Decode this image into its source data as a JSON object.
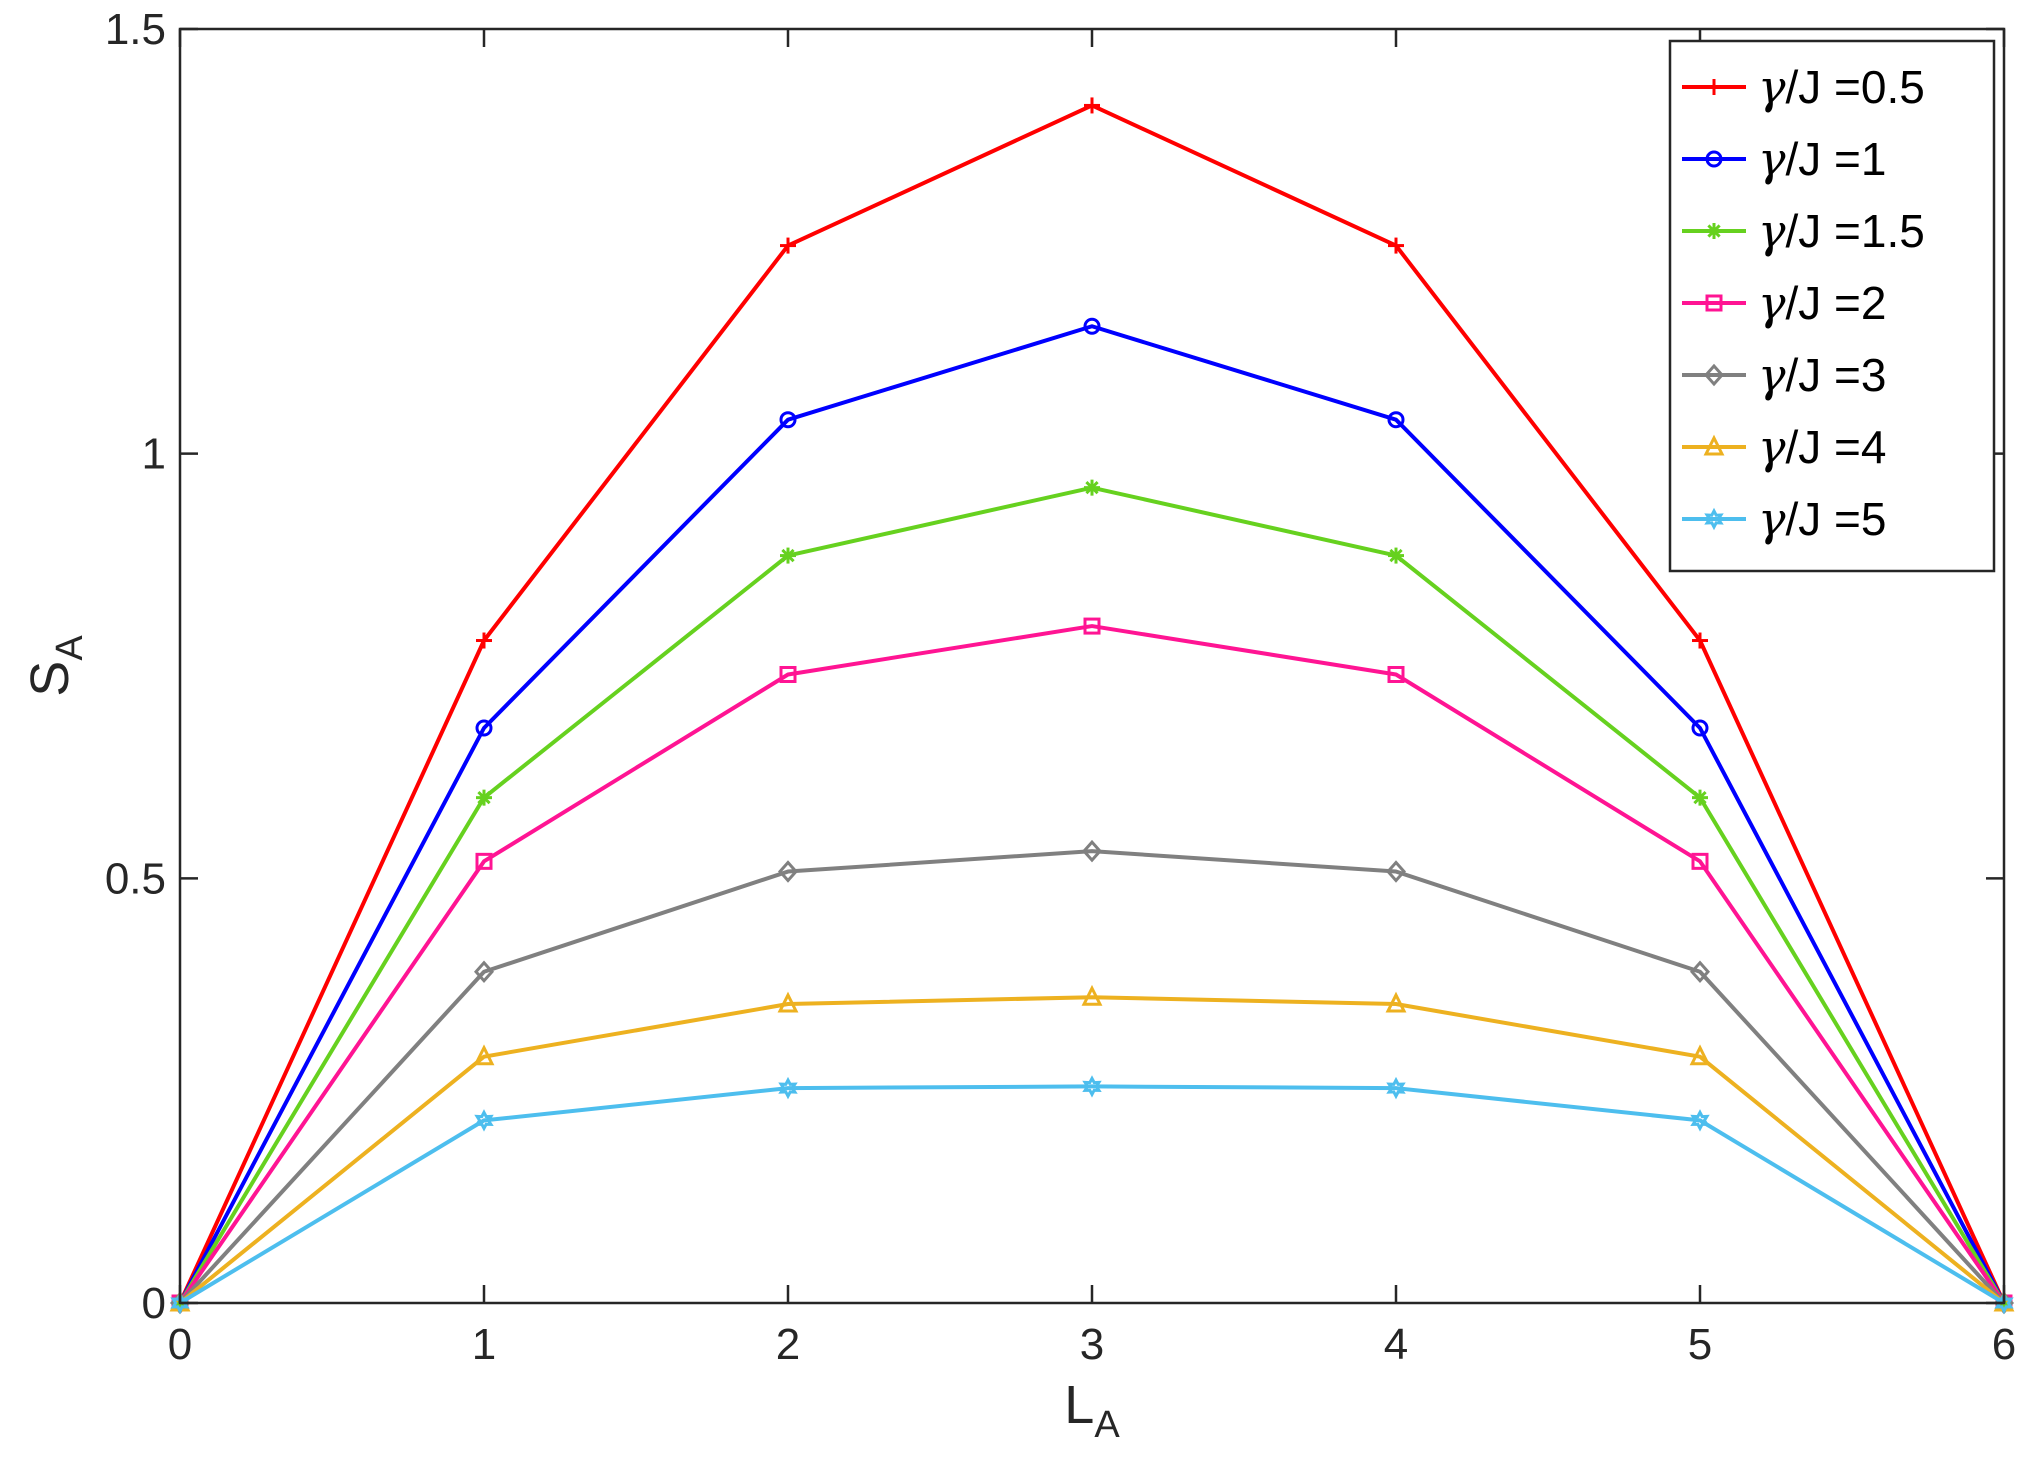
{
  "chart_data": {
    "type": "line",
    "title": "",
    "xlabel": {
      "main": "L",
      "sub": "A"
    },
    "ylabel": {
      "main": "S",
      "sub": "A"
    },
    "xlim": [
      0,
      6
    ],
    "ylim": [
      0,
      1.5
    ],
    "xticks": [
      0,
      1,
      2,
      3,
      4,
      5,
      6
    ],
    "xtick_labels": [
      "0",
      "1",
      "2",
      "3",
      "4",
      "5",
      "6"
    ],
    "yticks": [
      0,
      0.5,
      1,
      1.5
    ],
    "ytick_labels": [
      "0",
      "0.5",
      "1",
      "1.5"
    ],
    "grid": false,
    "legend_position": "top-right",
    "legend_symbol": "γ",
    "x": [
      0,
      1,
      2,
      3,
      4,
      5,
      6
    ],
    "series": [
      {
        "name": "/J =0.5",
        "color": "#ff0000",
        "marker": "plus",
        "values": [
          0,
          0.78,
          1.245,
          1.41,
          1.245,
          0.78,
          0
        ]
      },
      {
        "name": "/J =1",
        "color": "#0000ff",
        "marker": "circle",
        "values": [
          0,
          0.677,
          1.04,
          1.15,
          1.04,
          0.677,
          0
        ]
      },
      {
        "name": "/J =1.5",
        "color": "#66d11f",
        "marker": "asterisk",
        "values": [
          0,
          0.595,
          0.88,
          0.96,
          0.88,
          0.595,
          0
        ]
      },
      {
        "name": "/J =2",
        "color": "#ff1493",
        "marker": "square",
        "values": [
          0,
          0.52,
          0.74,
          0.797,
          0.74,
          0.52,
          0
        ]
      },
      {
        "name": "/J =3",
        "color": "#808080",
        "marker": "diamond",
        "values": [
          0,
          0.39,
          0.508,
          0.532,
          0.508,
          0.39,
          0
        ]
      },
      {
        "name": "/J =4",
        "color": "#edb120",
        "marker": "triangle",
        "values": [
          0,
          0.29,
          0.352,
          0.36,
          0.352,
          0.29,
          0
        ]
      },
      {
        "name": "/J =5",
        "color": "#4dbeee",
        "marker": "hexagram",
        "values": [
          0,
          0.215,
          0.253,
          0.255,
          0.253,
          0.215,
          0
        ]
      }
    ]
  }
}
